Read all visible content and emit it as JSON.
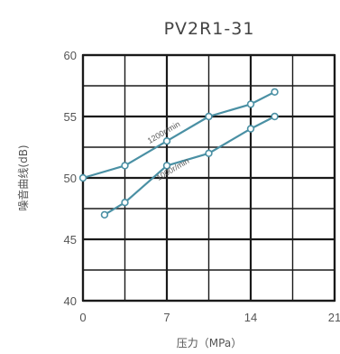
{
  "chart_data": {
    "type": "line",
    "title": "PV2R1-31",
    "xlabel": "压力（MPa）",
    "ylabel": "噪音曲线(dB)",
    "xlim": [
      0,
      21
    ],
    "ylim": [
      40,
      60
    ],
    "x_ticks": [
      0,
      7,
      14,
      21
    ],
    "y_ticks": [
      40,
      45,
      50,
      55,
      60
    ],
    "grid": true,
    "series": [
      {
        "name": "1200r/min",
        "color": "#4a90a4",
        "points": [
          [
            0,
            50
          ],
          [
            3.5,
            51
          ],
          [
            7,
            53
          ],
          [
            10.5,
            55
          ],
          [
            14,
            56
          ],
          [
            16,
            57
          ]
        ]
      },
      {
        "name": "1000r/min",
        "color": "#4a90a4",
        "points": [
          [
            1.8,
            47
          ],
          [
            3.5,
            48
          ],
          [
            7,
            51
          ],
          [
            10.5,
            52
          ],
          [
            14,
            54
          ],
          [
            16,
            55
          ]
        ]
      }
    ]
  }
}
